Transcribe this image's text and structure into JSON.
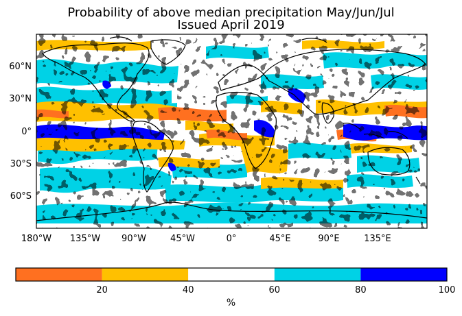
{
  "title": "Probability of above median precipitation May/Jun/Jul",
  "subtitle": "Issued April 2019",
  "lat_labels": [
    "60°N",
    "30°N",
    "0°",
    "30°S",
    "60°S"
  ],
  "lon_labels": [
    "180°W",
    "135°W",
    "90°W",
    "45°W",
    "0°",
    "45°E",
    "90°E",
    "135°E"
  ],
  "colorbar": {
    "unit": "%",
    "ticks": [
      "20",
      "40",
      "60",
      "80",
      "100"
    ],
    "bins": [
      {
        "from": 0,
        "to": 20,
        "color": "#ff7020"
      },
      {
        "from": 20,
        "to": 40,
        "color": "#ffc000"
      },
      {
        "from": 40,
        "to": 60,
        "color": "#ffffff"
      },
      {
        "from": 60,
        "to": 80,
        "color": "#00d2e6"
      },
      {
        "from": 80,
        "to": 100,
        "color": "#0000ff"
      }
    ]
  },
  "map": {
    "projection": "equirectangular",
    "lon_range": [
      -180,
      180
    ],
    "lat_range": [
      -90,
      90
    ],
    "background_class_color": "#ffffff",
    "coastline_color": "#000000"
  }
}
